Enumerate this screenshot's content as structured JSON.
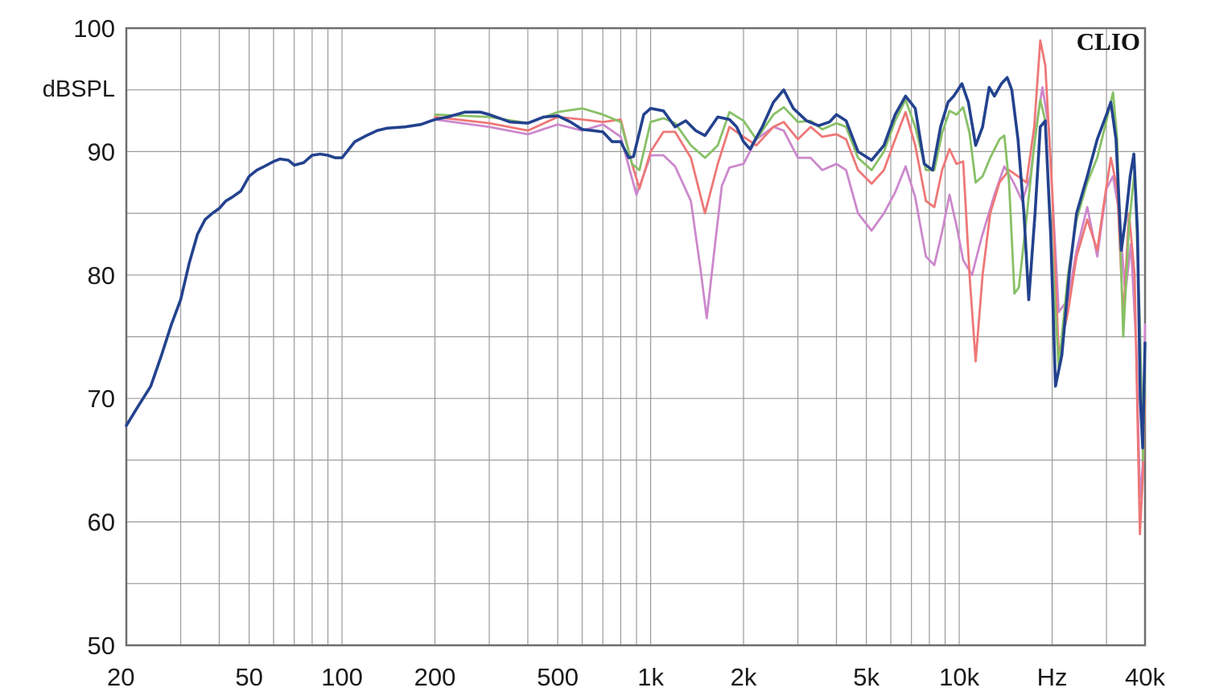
{
  "chart_data": {
    "type": "line",
    "brand": "CLIO",
    "ylabel": "dBSPL",
    "ylim": [
      50,
      100
    ],
    "xlim": [
      20,
      40000
    ],
    "x_scale": "log",
    "grid": true,
    "y_ticks": [
      {
        "value": 50,
        "label": "50"
      },
      {
        "value": 60,
        "label": "60"
      },
      {
        "value": 70,
        "label": "70"
      },
      {
        "value": 80,
        "label": "80"
      },
      {
        "value": 90,
        "label": "90"
      },
      {
        "value": 100,
        "label": "100"
      }
    ],
    "x_ticks": [
      {
        "value": 20,
        "label": "20"
      },
      {
        "value": 50,
        "label": "50"
      },
      {
        "value": 100,
        "label": "100"
      },
      {
        "value": 200,
        "label": "200"
      },
      {
        "value": 500,
        "label": "500"
      },
      {
        "value": 1000,
        "label": "1k"
      },
      {
        "value": 2000,
        "label": "2k"
      },
      {
        "value": 5000,
        "label": "5k"
      },
      {
        "value": 10000,
        "label": "10k"
      },
      {
        "value": 20000,
        "label": "Hz"
      },
      {
        "value": 40000,
        "label": "40k"
      }
    ],
    "series": [
      {
        "color": "#cc88cc",
        "points": [
          [
            200,
            92.6
          ],
          [
            300,
            92.0
          ],
          [
            400,
            91.4
          ],
          [
            500,
            92.2
          ],
          [
            600,
            91.7
          ],
          [
            700,
            92.2
          ],
          [
            800,
            91.2
          ],
          [
            900,
            86.5
          ],
          [
            1000,
            89.7
          ],
          [
            1100,
            89.7
          ],
          [
            1200,
            88.8
          ],
          [
            1350,
            86.0
          ],
          [
            1450,
            80.5
          ],
          [
            1520,
            76.5
          ],
          [
            1600,
            81.5
          ],
          [
            1700,
            87.2
          ],
          [
            1800,
            88.7
          ],
          [
            2000,
            89.0
          ],
          [
            2200,
            91.0
          ],
          [
            2500,
            92.0
          ],
          [
            2700,
            91.7
          ],
          [
            3000,
            89.5
          ],
          [
            3300,
            89.5
          ],
          [
            3600,
            88.5
          ],
          [
            4000,
            89.0
          ],
          [
            4300,
            88.5
          ],
          [
            4700,
            85.0
          ],
          [
            5200,
            83.6
          ],
          [
            5700,
            85.0
          ],
          [
            6200,
            86.7
          ],
          [
            6700,
            88.8
          ],
          [
            7200,
            86.3
          ],
          [
            7800,
            81.5
          ],
          [
            8300,
            80.8
          ],
          [
            8800,
            83.5
          ],
          [
            9300,
            86.5
          ],
          [
            9800,
            84.0
          ],
          [
            10300,
            81.2
          ],
          [
            11000,
            80.0
          ],
          [
            11800,
            83.0
          ],
          [
            13000,
            86.5
          ],
          [
            14000,
            88.8
          ],
          [
            15000,
            87.5
          ],
          [
            16000,
            86.0
          ],
          [
            17000,
            88.0
          ],
          [
            18000,
            93.0
          ],
          [
            18600,
            95.2
          ],
          [
            19500,
            92.0
          ],
          [
            21000,
            77.0
          ],
          [
            22500,
            78.0
          ],
          [
            24000,
            82.0
          ],
          [
            26000,
            85.5
          ],
          [
            28000,
            81.5
          ],
          [
            30000,
            87.0
          ],
          [
            31500,
            88.0
          ],
          [
            33000,
            85.0
          ],
          [
            34500,
            78.5
          ],
          [
            36000,
            82.5
          ],
          [
            37500,
            74.0
          ],
          [
            38500,
            62.0
          ],
          [
            39300,
            64.5
          ],
          [
            40000,
            76.0
          ]
        ]
      },
      {
        "color": "#ee7777",
        "points": [
          [
            200,
            92.8
          ],
          [
            300,
            92.3
          ],
          [
            400,
            91.7
          ],
          [
            500,
            92.8
          ],
          [
            600,
            92.6
          ],
          [
            700,
            92.4
          ],
          [
            800,
            92.6
          ],
          [
            870,
            89.0
          ],
          [
            920,
            87.0
          ],
          [
            1000,
            90.0
          ],
          [
            1100,
            91.6
          ],
          [
            1200,
            91.6
          ],
          [
            1350,
            89.5
          ],
          [
            1500,
            85.0
          ],
          [
            1650,
            89.0
          ],
          [
            1800,
            92.0
          ],
          [
            2000,
            91.2
          ],
          [
            2200,
            90.5
          ],
          [
            2500,
            92.0
          ],
          [
            2700,
            92.4
          ],
          [
            3000,
            91.0
          ],
          [
            3300,
            92.0
          ],
          [
            3600,
            91.2
          ],
          [
            4000,
            91.4
          ],
          [
            4300,
            91.0
          ],
          [
            4700,
            88.5
          ],
          [
            5200,
            87.4
          ],
          [
            5700,
            88.5
          ],
          [
            6200,
            91.0
          ],
          [
            6700,
            93.2
          ],
          [
            7200,
            90.5
          ],
          [
            7800,
            86.0
          ],
          [
            8300,
            85.5
          ],
          [
            8800,
            88.5
          ],
          [
            9300,
            90.2
          ],
          [
            9800,
            89.0
          ],
          [
            10300,
            89.2
          ],
          [
            10800,
            80.0
          ],
          [
            11300,
            73.0
          ],
          [
            11900,
            80.0
          ],
          [
            12600,
            85.0
          ],
          [
            13500,
            87.5
          ],
          [
            14500,
            88.5
          ],
          [
            15500,
            88.0
          ],
          [
            16500,
            87.5
          ],
          [
            17500,
            92.0
          ],
          [
            18300,
            99.0
          ],
          [
            19000,
            97.0
          ],
          [
            20000,
            87.0
          ],
          [
            21000,
            73.5
          ],
          [
            22500,
            77.0
          ],
          [
            24000,
            81.5
          ],
          [
            26000,
            84.5
          ],
          [
            28000,
            82.0
          ],
          [
            29500,
            86.0
          ],
          [
            31000,
            89.5
          ],
          [
            32500,
            87.0
          ],
          [
            34000,
            76.5
          ],
          [
            35500,
            85.0
          ],
          [
            37000,
            80.0
          ],
          [
            38500,
            59.0
          ],
          [
            39400,
            64.0
          ],
          [
            40000,
            70.0
          ]
        ]
      },
      {
        "color": "#88c066",
        "points": [
          [
            200,
            93.0
          ],
          [
            300,
            92.8
          ],
          [
            400,
            92.3
          ],
          [
            500,
            93.2
          ],
          [
            600,
            93.5
          ],
          [
            700,
            93.0
          ],
          [
            800,
            92.4
          ],
          [
            870,
            89.0
          ],
          [
            920,
            88.5
          ],
          [
            1000,
            92.4
          ],
          [
            1100,
            92.7
          ],
          [
            1200,
            92.3
          ],
          [
            1350,
            90.5
          ],
          [
            1500,
            89.5
          ],
          [
            1650,
            90.5
          ],
          [
            1800,
            93.2
          ],
          [
            2000,
            92.5
          ],
          [
            2200,
            91.0
          ],
          [
            2500,
            93.0
          ],
          [
            2700,
            93.6
          ],
          [
            3000,
            92.4
          ],
          [
            3300,
            92.5
          ],
          [
            3600,
            91.8
          ],
          [
            4000,
            92.3
          ],
          [
            4300,
            92.0
          ],
          [
            4700,
            89.5
          ],
          [
            5200,
            88.5
          ],
          [
            5700,
            90.0
          ],
          [
            6200,
            92.5
          ],
          [
            6700,
            94.2
          ],
          [
            7200,
            92.0
          ],
          [
            7800,
            88.5
          ],
          [
            8300,
            88.5
          ],
          [
            8800,
            91.5
          ],
          [
            9300,
            93.3
          ],
          [
            9800,
            93.0
          ],
          [
            10300,
            93.6
          ],
          [
            10800,
            91.5
          ],
          [
            11300,
            87.5
          ],
          [
            11900,
            88.0
          ],
          [
            12600,
            89.5
          ],
          [
            13500,
            91.0
          ],
          [
            14000,
            91.3
          ],
          [
            14500,
            87.5
          ],
          [
            15100,
            78.5
          ],
          [
            15600,
            79.0
          ],
          [
            16500,
            84.5
          ],
          [
            17500,
            90.5
          ],
          [
            18300,
            94.2
          ],
          [
            19000,
            92.5
          ],
          [
            20000,
            82.0
          ],
          [
            21000,
            72.5
          ],
          [
            22500,
            80.0
          ],
          [
            24000,
            84.5
          ],
          [
            26000,
            87.5
          ],
          [
            28000,
            89.5
          ],
          [
            30000,
            92.5
          ],
          [
            31500,
            94.8
          ],
          [
            32500,
            91.0
          ],
          [
            34000,
            75.0
          ],
          [
            35500,
            84.0
          ],
          [
            37000,
            88.5
          ],
          [
            38500,
            76.0
          ],
          [
            39400,
            65.0
          ],
          [
            40000,
            72.0
          ]
        ]
      },
      {
        "color": "#23428e",
        "points": [
          [
            20,
            67.8
          ],
          [
            22,
            69.5
          ],
          [
            24,
            71.0
          ],
          [
            26,
            73.5
          ],
          [
            28,
            76.0
          ],
          [
            30,
            78.0
          ],
          [
            32,
            81.0
          ],
          [
            34,
            83.3
          ],
          [
            36,
            84.5
          ],
          [
            38,
            85.0
          ],
          [
            40,
            85.4
          ],
          [
            42,
            86.0
          ],
          [
            44,
            86.3
          ],
          [
            47,
            86.8
          ],
          [
            50,
            88.0
          ],
          [
            53,
            88.5
          ],
          [
            56,
            88.8
          ],
          [
            60,
            89.2
          ],
          [
            63,
            89.4
          ],
          [
            67,
            89.3
          ],
          [
            70,
            88.9
          ],
          [
            75,
            89.1
          ],
          [
            80,
            89.7
          ],
          [
            85,
            89.8
          ],
          [
            90,
            89.7
          ],
          [
            95,
            89.5
          ],
          [
            100,
            89.5
          ],
          [
            110,
            90.8
          ],
          [
            120,
            91.3
          ],
          [
            130,
            91.7
          ],
          [
            140,
            91.9
          ],
          [
            160,
            92.0
          ],
          [
            180,
            92.2
          ],
          [
            200,
            92.6
          ],
          [
            220,
            92.8
          ],
          [
            250,
            93.2
          ],
          [
            280,
            93.2
          ],
          [
            300,
            93.0
          ],
          [
            350,
            92.4
          ],
          [
            400,
            92.3
          ],
          [
            450,
            92.8
          ],
          [
            500,
            92.9
          ],
          [
            550,
            92.4
          ],
          [
            600,
            91.8
          ],
          [
            650,
            91.7
          ],
          [
            700,
            91.6
          ],
          [
            750,
            90.8
          ],
          [
            800,
            90.8
          ],
          [
            850,
            89.5
          ],
          [
            880,
            89.6
          ],
          [
            950,
            93.0
          ],
          [
            1000,
            93.5
          ],
          [
            1100,
            93.3
          ],
          [
            1200,
            92.0
          ],
          [
            1300,
            92.5
          ],
          [
            1400,
            91.7
          ],
          [
            1500,
            91.3
          ],
          [
            1650,
            92.8
          ],
          [
            1800,
            92.6
          ],
          [
            1900,
            92.0
          ],
          [
            2000,
            90.8
          ],
          [
            2100,
            90.2
          ],
          [
            2300,
            92.0
          ],
          [
            2500,
            94.0
          ],
          [
            2700,
            95.0
          ],
          [
            2900,
            93.5
          ],
          [
            3200,
            92.5
          ],
          [
            3500,
            92.1
          ],
          [
            3800,
            92.4
          ],
          [
            4000,
            93.0
          ],
          [
            4300,
            92.5
          ],
          [
            4700,
            90.0
          ],
          [
            5200,
            89.3
          ],
          [
            5700,
            90.5
          ],
          [
            6200,
            93.0
          ],
          [
            6700,
            94.5
          ],
          [
            7200,
            93.5
          ],
          [
            7700,
            89.0
          ],
          [
            8200,
            88.5
          ],
          [
            8700,
            92.0
          ],
          [
            9200,
            94.0
          ],
          [
            9600,
            94.5
          ],
          [
            10200,
            95.5
          ],
          [
            10700,
            94.0
          ],
          [
            11300,
            90.5
          ],
          [
            11900,
            92.0
          ],
          [
            12500,
            95.2
          ],
          [
            13000,
            94.5
          ],
          [
            13700,
            95.5
          ],
          [
            14300,
            96.0
          ],
          [
            14800,
            95.0
          ],
          [
            15500,
            91.0
          ],
          [
            16200,
            85.0
          ],
          [
            16800,
            78.0
          ],
          [
            17600,
            85.0
          ],
          [
            18300,
            92.0
          ],
          [
            19000,
            92.5
          ],
          [
            19800,
            83.0
          ],
          [
            20500,
            71.0
          ],
          [
            21500,
            73.5
          ],
          [
            22700,
            80.0
          ],
          [
            24000,
            85.0
          ],
          [
            26000,
            88.0
          ],
          [
            28000,
            91.0
          ],
          [
            30000,
            93.0
          ],
          [
            31000,
            94.0
          ],
          [
            32200,
            91.0
          ],
          [
            33500,
            82.0
          ],
          [
            34600,
            84.5
          ],
          [
            35800,
            88.0
          ],
          [
            36800,
            89.8
          ],
          [
            37800,
            83.5
          ],
          [
            38600,
            70.0
          ],
          [
            39300,
            66.0
          ],
          [
            40000,
            74.5
          ]
        ]
      }
    ]
  }
}
